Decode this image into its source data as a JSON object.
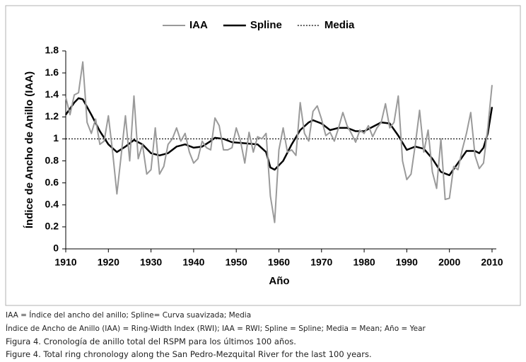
{
  "chart_data": {
    "type": "line",
    "x_label": "Año",
    "y_label": "Índice de Ancho de Anillo (IAA)",
    "xlim": [
      1910,
      2011
    ],
    "ylim": [
      0,
      1.8
    ],
    "xticks": [
      1910,
      1920,
      1930,
      1940,
      1950,
      1960,
      1970,
      1980,
      1990,
      2000,
      2010
    ],
    "yticks": [
      0,
      0.2,
      0.4,
      0.6,
      0.8,
      1,
      1.2,
      1.4,
      1.6,
      1.8
    ],
    "grid": false,
    "legend": "top",
    "series": [
      {
        "name": "IAA",
        "color": "#9a9a9a",
        "width": 2,
        "dash": "solid",
        "x": [
          1910,
          1911,
          1912,
          1913,
          1914,
          1915,
          1916,
          1917,
          1918,
          1919,
          1920,
          1921,
          1922,
          1923,
          1924,
          1925,
          1926,
          1927,
          1928,
          1929,
          1930,
          1931,
          1932,
          1933,
          1934,
          1935,
          1936,
          1937,
          1938,
          1939,
          1940,
          1941,
          1942,
          1943,
          1944,
          1945,
          1946,
          1947,
          1948,
          1949,
          1950,
          1951,
          1952,
          1953,
          1954,
          1955,
          1956,
          1957,
          1958,
          1959,
          1960,
          1961,
          1962,
          1963,
          1964,
          1965,
          1966,
          1967,
          1968,
          1969,
          1970,
          1971,
          1972,
          1973,
          1974,
          1975,
          1976,
          1977,
          1978,
          1979,
          1980,
          1981,
          1982,
          1983,
          1984,
          1985,
          1986,
          1987,
          1988,
          1989,
          1990,
          1991,
          1992,
          1993,
          1994,
          1995,
          1996,
          1997,
          1998,
          1999,
          2000,
          2001,
          2002,
          2003,
          2004,
          2005,
          2006,
          2007,
          2008,
          2009,
          2010
        ],
        "values": [
          1.38,
          1.22,
          1.4,
          1.42,
          1.7,
          1.15,
          1.05,
          1.18,
          0.95,
          0.98,
          1.21,
          0.88,
          0.5,
          0.85,
          1.21,
          0.8,
          1.39,
          0.82,
          0.95,
          0.68,
          0.72,
          1.1,
          0.68,
          0.75,
          0.95,
          1.0,
          1.1,
          0.98,
          1.05,
          0.88,
          0.78,
          0.82,
          0.98,
          0.92,
          0.9,
          1.19,
          1.12,
          0.9,
          0.9,
          0.92,
          1.1,
          0.98,
          0.78,
          1.06,
          0.88,
          1.02,
          1.0,
          1.05,
          0.48,
          0.24,
          0.9,
          1.1,
          0.88,
          0.9,
          0.85,
          1.33,
          1.05,
          0.98,
          1.25,
          1.3,
          1.18,
          1.03,
          1.06,
          0.98,
          1.1,
          1.24,
          1.12,
          1.05,
          0.97,
          1.08,
          1.05,
          1.12,
          1.02,
          1.1,
          1.15,
          1.32,
          1.1,
          1.15,
          1.39,
          0.8,
          0.63,
          0.68,
          0.95,
          1.26,
          0.88,
          1.08,
          0.7,
          0.55,
          1.0,
          0.45,
          0.46,
          0.75,
          0.72,
          0.9,
          1.05,
          1.24,
          0.85,
          0.73,
          0.78,
          1.1,
          1.49
        ]
      },
      {
        "name": "Spline",
        "color": "#000000",
        "width": 2.5,
        "dash": "solid",
        "x": [
          1910,
          1912,
          1913,
          1914,
          1916,
          1918,
          1920,
          1922,
          1924,
          1926,
          1928,
          1930,
          1932,
          1934,
          1936,
          1938,
          1940,
          1942,
          1944,
          1945,
          1947,
          1949,
          1952,
          1955,
          1957,
          1958,
          1959,
          1961,
          1963,
          1965,
          1967,
          1968,
          1970,
          1972,
          1974,
          1976,
          1978,
          1980,
          1982,
          1984,
          1986,
          1988,
          1990,
          1992,
          1994,
          1996,
          1998,
          2000,
          2002,
          2004,
          2006,
          2007,
          2008,
          2009,
          2010
        ],
        "values": [
          1.22,
          1.33,
          1.37,
          1.36,
          1.22,
          1.07,
          0.95,
          0.88,
          0.93,
          0.99,
          0.95,
          0.87,
          0.85,
          0.87,
          0.93,
          0.95,
          0.92,
          0.93,
          0.98,
          1.01,
          1.0,
          0.97,
          0.96,
          0.95,
          0.88,
          0.74,
          0.72,
          0.8,
          0.95,
          1.08,
          1.15,
          1.17,
          1.14,
          1.08,
          1.1,
          1.1,
          1.07,
          1.07,
          1.11,
          1.15,
          1.14,
          1.03,
          0.9,
          0.93,
          0.91,
          0.82,
          0.7,
          0.67,
          0.78,
          0.89,
          0.89,
          0.87,
          0.92,
          1.05,
          1.29
        ]
      },
      {
        "name": "Media",
        "color": "#000000",
        "width": 1.2,
        "dash": "dotted",
        "x": [
          1910,
          2010
        ],
        "values": [
          1,
          1
        ]
      }
    ]
  },
  "caption": [
    "IAA = Índice del ancho del anillo; Spline= Curva suavizada; Media",
    "Índice de Ancho de Anillo (IAA) = Ring-Width Index (RWI); IAA = RWI; Spline = Spline; Media = Mean; Año = Year",
    "Figura 4. Cronología de anillo total del RSPM para los últimos 100 años.",
    "Figure 4. Total ring chronology along the San Pedro-Mezquital River for the last 100 years."
  ]
}
